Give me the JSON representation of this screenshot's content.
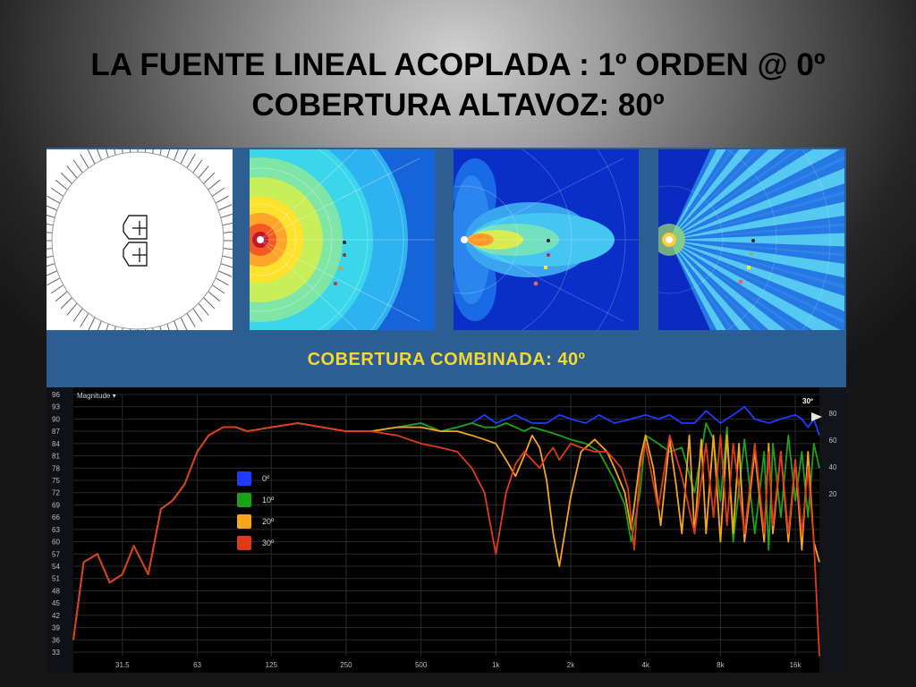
{
  "slide": {
    "title_line1": "LA FUENTE LINEAL ACOPLADA : 1º ORDEN @ 0º",
    "title_line2": "COBERTURA ALTAVOZ: 80º"
  },
  "coverage_label": "COBERTURA COMBINADA: 40º",
  "polar_plots": [
    {
      "view": "loudspeaker-array-diagram"
    },
    {
      "view": "coverage-map-radial"
    },
    {
      "view": "coverage-map-lobes"
    },
    {
      "view": "coverage-map-fan"
    }
  ],
  "chart_data": {
    "type": "line",
    "ylabel": "Magnitude ▾",
    "x_scale": "log",
    "xlim": [
      20,
      20000
    ],
    "x_tick_labels": [
      "31.5",
      "63",
      "125",
      "250",
      "500",
      "1k",
      "2k",
      "4k",
      "8k",
      "16k"
    ],
    "x_tick_values": [
      31.5,
      63,
      125,
      250,
      500,
      1000,
      2000,
      4000,
      8000,
      16000
    ],
    "ylim": [
      33,
      96
    ],
    "y_tick_labels": [
      "96",
      "93",
      "90",
      "87",
      "84",
      "81",
      "78",
      "75",
      "72",
      "69",
      "66",
      "63",
      "60",
      "57",
      "54",
      "51",
      "48",
      "45",
      "42",
      "39",
      "36",
      "33"
    ],
    "right_axis_ticks": [
      "80",
      "60",
      "40",
      "20"
    ],
    "right_axis_tag": "30º",
    "grid": true,
    "legend_placement": "left-middle",
    "series": [
      {
        "name": "0º",
        "color": "#1f3bff",
        "x": [
          20,
          22,
          25,
          28,
          31.5,
          35,
          40,
          45,
          50,
          56,
          63,
          70,
          80,
          90,
          100,
          125,
          160,
          200,
          250,
          315,
          400,
          500,
          600,
          700,
          800,
          900,
          1000,
          1100,
          1200,
          1400,
          1600,
          1800,
          2000,
          2300,
          2600,
          3000,
          3500,
          4000,
          4500,
          5000,
          5600,
          6300,
          7000,
          8000,
          9000,
          10000,
          11000,
          12500,
          14000,
          16000,
          17000,
          18000,
          19000,
          20000
        ],
        "y": [
          36,
          55,
          57,
          50,
          52,
          59,
          52,
          68,
          70,
          74,
          82,
          86,
          88,
          88,
          87,
          88,
          89,
          88,
          87,
          87,
          88,
          89,
          87,
          88,
          89,
          91,
          89,
          90,
          91,
          89,
          89,
          91,
          90,
          89,
          91,
          89,
          90,
          91,
          90,
          91,
          89,
          89,
          92,
          89,
          91,
          93,
          90,
          89,
          90,
          91,
          90,
          88,
          90,
          86
        ]
      },
      {
        "name": "10º",
        "color": "#1aa31a",
        "x": [
          20,
          22,
          25,
          28,
          31.5,
          35,
          40,
          45,
          50,
          56,
          63,
          70,
          80,
          90,
          100,
          125,
          160,
          200,
          250,
          315,
          400,
          500,
          600,
          700,
          800,
          900,
          1000,
          1100,
          1200,
          1300,
          1400,
          1600,
          1800,
          2000,
          2300,
          2600,
          3000,
          3300,
          3500,
          3800,
          4000,
          4500,
          5000,
          5600,
          6300,
          7000,
          7500,
          8000,
          8500,
          9000,
          10000,
          11000,
          12000,
          12500,
          13000,
          14000,
          15000,
          16000,
          17000,
          18000,
          19000,
          20000
        ],
        "y": [
          36,
          55,
          57,
          50,
          52,
          59,
          52,
          68,
          70,
          74,
          82,
          86,
          88,
          88,
          87,
          88,
          89,
          88,
          87,
          87,
          88,
          89,
          87,
          88,
          89,
          88,
          88,
          89,
          88,
          87,
          88,
          87,
          86,
          85,
          84,
          82,
          75,
          69,
          60,
          72,
          86,
          84,
          82,
          83,
          72,
          89,
          85,
          70,
          88,
          60,
          85,
          62,
          82,
          58,
          84,
          66,
          86,
          70,
          82,
          66,
          84,
          78
        ]
      },
      {
        "name": "20º",
        "color": "#f5a41c",
        "x": [
          20,
          22,
          25,
          28,
          31.5,
          35,
          40,
          45,
          50,
          56,
          63,
          70,
          80,
          90,
          100,
          125,
          160,
          200,
          250,
          315,
          400,
          500,
          600,
          700,
          800,
          900,
          1000,
          1100,
          1200,
          1300,
          1400,
          1500,
          1600,
          1700,
          1800,
          2000,
          2200,
          2500,
          2800,
          3000,
          3300,
          3500,
          3800,
          4000,
          4300,
          4600,
          5000,
          5300,
          5600,
          6000,
          6300,
          6700,
          7000,
          7500,
          8000,
          8500,
          9000,
          9500,
          10000,
          11000,
          12000,
          12500,
          13000,
          14000,
          15000,
          16000,
          17000,
          18000,
          19000,
          20000
        ],
        "y": [
          36,
          55,
          57,
          50,
          52,
          59,
          52,
          68,
          70,
          74,
          82,
          86,
          88,
          88,
          87,
          88,
          89,
          88,
          87,
          87,
          88,
          88,
          87,
          87,
          86,
          85,
          84,
          80,
          76,
          81,
          86,
          83,
          75,
          62,
          54,
          71,
          82,
          85,
          82,
          78,
          72,
          63,
          80,
          86,
          78,
          64,
          85,
          74,
          62,
          86,
          62,
          85,
          62,
          86,
          60,
          86,
          62,
          84,
          60,
          82,
          60,
          84,
          62,
          82,
          60,
          80,
          58,
          82,
          60,
          55
        ]
      },
      {
        "name": "30º",
        "color": "#e03a1a",
        "x": [
          20,
          22,
          25,
          28,
          31.5,
          35,
          40,
          45,
          50,
          56,
          63,
          70,
          80,
          90,
          100,
          125,
          160,
          200,
          250,
          315,
          400,
          500,
          600,
          700,
          800,
          900,
          1000,
          1100,
          1200,
          1300,
          1400,
          1500,
          1600,
          1700,
          1800,
          2000,
          2200,
          2500,
          2800,
          3000,
          3200,
          3400,
          3600,
          3800,
          4000,
          4500,
          5000,
          5600,
          6300,
          7000,
          7500,
          8000,
          8500,
          9000,
          10000,
          11000,
          12000,
          12500,
          13000,
          14000,
          15000,
          16000,
          17000,
          18000,
          19000,
          20000
        ],
        "y": [
          36,
          55,
          57,
          50,
          52,
          59,
          52,
          68,
          70,
          74,
          82,
          86,
          88,
          88,
          87,
          88,
          89,
          88,
          87,
          87,
          86,
          84,
          83,
          82,
          78,
          72,
          57,
          72,
          79,
          82,
          80,
          78,
          81,
          83,
          80,
          84,
          83,
          82,
          82,
          80,
          78,
          73,
          58,
          78,
          84,
          68,
          86,
          76,
          62,
          84,
          66,
          86,
          64,
          84,
          62,
          84,
          62,
          82,
          64,
          82,
          62,
          80,
          62,
          78,
          60,
          32
        ]
      }
    ]
  }
}
